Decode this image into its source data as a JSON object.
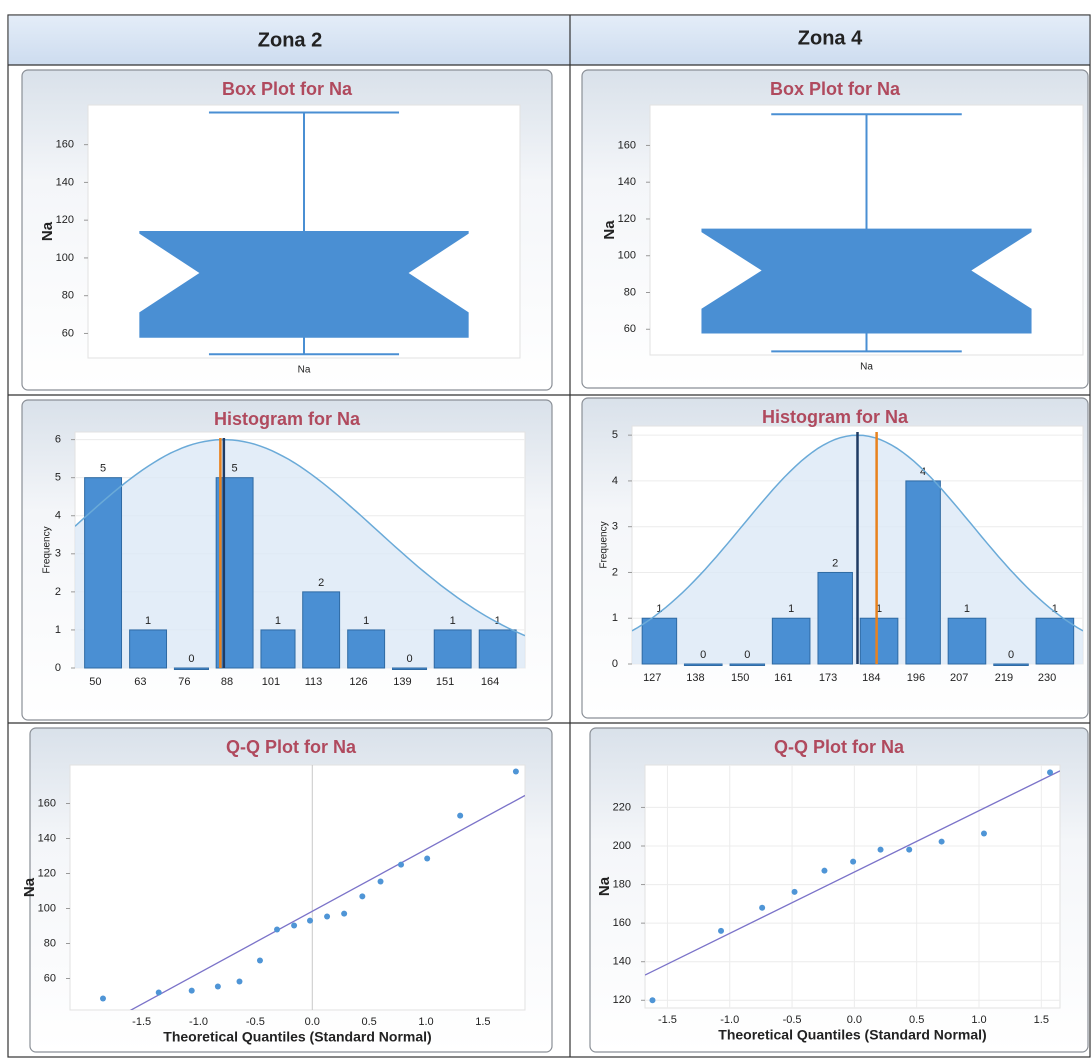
{
  "table": {
    "headers": [
      "Zona 2",
      "Zona 4"
    ]
  },
  "chart_data": [
    {
      "type": "box",
      "title": "Box Plot for Na",
      "ylabel": "Na",
      "categories": [
        "Na"
      ],
      "series": [
        {
          "name": "Na",
          "color": "#4a8fd3",
          "min": 49,
          "q1": 58,
          "notch_low": 71,
          "median": 92,
          "notch_high": 113,
          "q3": 114,
          "max": 177
        }
      ],
      "ylim": [
        47,
        181
      ],
      "yticks": [
        60,
        80,
        100,
        120,
        140,
        160
      ],
      "grid": false
    },
    {
      "type": "histogram",
      "title": "Histogram for Na",
      "ylabel": "Frequency",
      "color": "#4a8fd3",
      "bins": [
        50,
        63,
        76,
        88,
        101,
        113,
        126,
        139,
        151,
        164,
        177
      ],
      "counts": [
        5,
        1,
        0,
        5,
        1,
        2,
        1,
        0,
        1,
        1
      ],
      "xlim": [
        48,
        178
      ],
      "ylim": [
        0,
        6.2
      ],
      "yticks": [
        0,
        1,
        2,
        3,
        4,
        5,
        6
      ],
      "grid": true,
      "normal_curve": {
        "mean": 91,
        "sd": 44,
        "peak": 6,
        "color": "#6aaad8"
      },
      "vlines": [
        {
          "value": 90,
          "color": "#e8821e"
        },
        {
          "value": 91,
          "color": "#1f3b63"
        }
      ]
    },
    {
      "type": "scatter",
      "title": "Q-Q Plot for Na",
      "xlabel": "Theoretical Quantiles (Standard Normal)",
      "ylabel": "Na",
      "color": "#4f95d6",
      "x": [
        -1.84,
        -1.35,
        -1.06,
        -0.83,
        -0.64,
        -0.46,
        -0.31,
        -0.16,
        -0.02,
        0.13,
        0.28,
        0.44,
        0.6,
        0.78,
        1.01,
        1.3,
        1.79
      ],
      "y": [
        48.6,
        52,
        53.1,
        55.4,
        58.3,
        70.3,
        88,
        90.3,
        93.1,
        95.4,
        97.1,
        106.9,
        115.4,
        125.1,
        128.6,
        153.1,
        178.3
      ],
      "fit": {
        "slope": 35.4,
        "intercept": 98.4,
        "color": "#7b73c9"
      },
      "xlim": [
        -2.13,
        1.87
      ],
      "ylim": [
        42,
        182
      ],
      "xticks": [
        -1.5,
        {
          "value": -1,
          "label": "-1.0"
        },
        -0.5,
        {
          "value": 0,
          "label": "0.0"
        },
        0.5,
        {
          "value": 1,
          "label": "1.0"
        },
        1.5
      ],
      "yticks": [
        60,
        80,
        100,
        120,
        140,
        160
      ],
      "grid": false,
      "zero_line": true
    },
    {
      "type": "box",
      "title": "Box Plot for Na",
      "ylabel": "Na",
      "categories": [
        "Na"
      ],
      "series": [
        {
          "name": "Na",
          "color": "#4a8fd3",
          "min": 48,
          "q1": 58,
          "notch_low": 71,
          "median": 92,
          "notch_high": 113,
          "q3": 114.5,
          "max": 177
        }
      ],
      "ylim": [
        46,
        182
      ],
      "yticks": [
        60,
        80,
        100,
        120,
        140,
        160
      ],
      "grid": false
    },
    {
      "type": "histogram",
      "title": "Histogram for Na",
      "ylabel": "Frequency",
      "color": "#4a8fd3",
      "bins": [
        127,
        138,
        150,
        161,
        173,
        184,
        196,
        207,
        219,
        230,
        242
      ],
      "counts": [
        1,
        0,
        0,
        1,
        2,
        1,
        4,
        1,
        0,
        1
      ],
      "xlim": [
        125,
        243
      ],
      "ylim": [
        0,
        5.2
      ],
      "yticks": [
        0,
        1,
        2,
        3,
        4,
        5
      ],
      "grid": true,
      "normal_curve": {
        "mean": 184,
        "sd": 30,
        "peak": 5,
        "color": "#6aaad8"
      },
      "vlines": [
        {
          "value": 184,
          "color": "#1f3b63"
        },
        {
          "value": 189,
          "color": "#e8821e"
        }
      ]
    },
    {
      "type": "scatter",
      "title": "Q-Q Plot for Na",
      "xlabel": "Theoretical Quantiles (Standard Normal)",
      "ylabel": "Na",
      "color": "#4f95d6",
      "x": [
        -1.62,
        -1.07,
        -0.74,
        -0.48,
        -0.24,
        -0.01,
        0.21,
        0.44,
        0.7,
        1.04,
        1.57
      ],
      "y": [
        120,
        156,
        168,
        176.2,
        187.2,
        191.9,
        198.1,
        198.1,
        202.3,
        206.5,
        238.2
      ],
      "fit": {
        "slope": 31.8,
        "intercept": 186.5,
        "color": "#7b73c9"
      },
      "xlim": [
        -1.68,
        1.65
      ],
      "ylim": [
        116,
        242
      ],
      "xticks": [
        -1.5,
        {
          "value": -1,
          "label": "-1.0"
        },
        -0.5,
        {
          "value": 0,
          "label": "0.0"
        },
        0.5,
        {
          "value": 1,
          "label": "1.0"
        },
        1.5
      ],
      "yticks": [
        120,
        140,
        160,
        180,
        200,
        220
      ],
      "grid": true,
      "zero_line": false
    }
  ]
}
